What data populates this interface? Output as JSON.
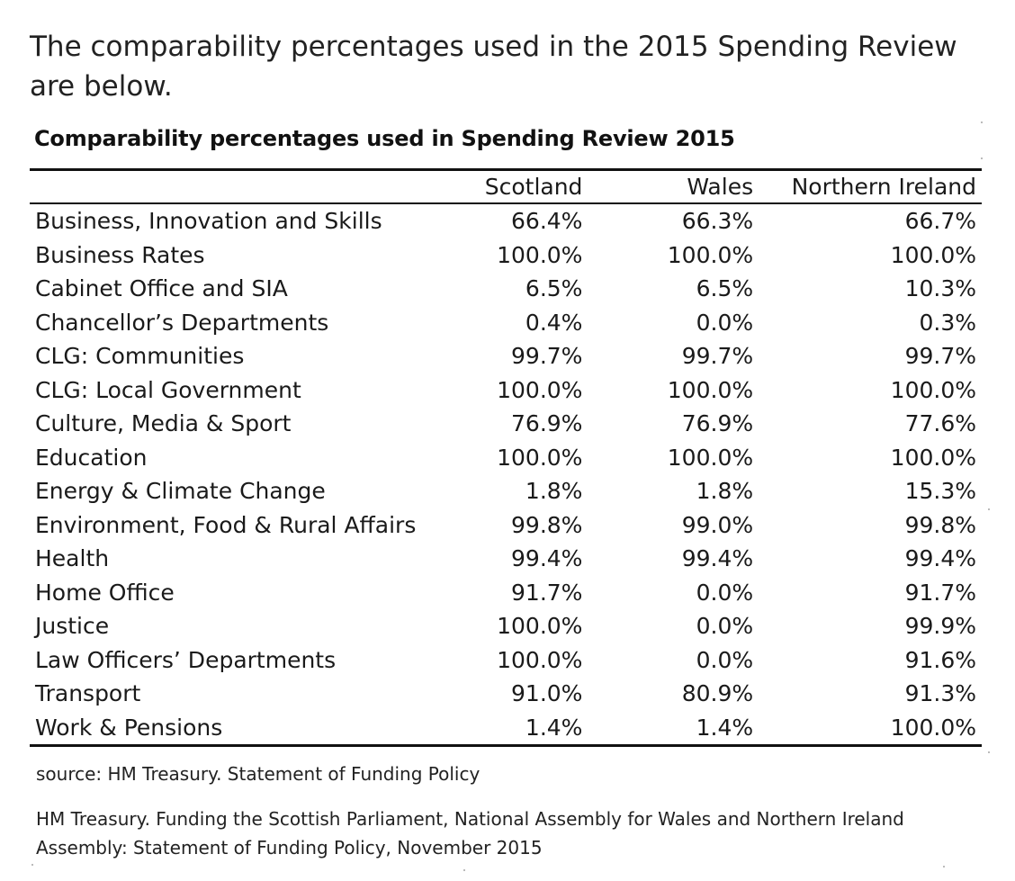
{
  "intro": {
    "text": "The comparability percentages used in the 2015 Spending Review are below."
  },
  "table": {
    "title": "Comparability percentages used in Spending Review 2015",
    "columns": [
      "",
      "Scotland",
      "Wales",
      "Northern Ireland"
    ],
    "rows": [
      {
        "department": "Business, Innovation and Skills",
        "scotland": "66.4%",
        "wales": "66.3%",
        "northern_ireland": "66.7%"
      },
      {
        "department": "Business Rates",
        "scotland": "100.0%",
        "wales": "100.0%",
        "northern_ireland": "100.0%"
      },
      {
        "department": "Cabinet Office and SIA",
        "scotland": "6.5%",
        "wales": "6.5%",
        "northern_ireland": "10.3%"
      },
      {
        "department": "Chancellor’s  Departments",
        "scotland": "0.4%",
        "wales": "0.0%",
        "northern_ireland": "0.3%"
      },
      {
        "department": "CLG: Communities",
        "scotland": "99.7%",
        "wales": "99.7%",
        "northern_ireland": "99.7%"
      },
      {
        "department": "CLG: Local Government",
        "scotland": "100.0%",
        "wales": "100.0%",
        "northern_ireland": "100.0%"
      },
      {
        "department": "Culture, Media & Sport",
        "scotland": "76.9%",
        "wales": "76.9%",
        "northern_ireland": "77.6%"
      },
      {
        "department": "Education",
        "scotland": "100.0%",
        "wales": "100.0%",
        "northern_ireland": "100.0%"
      },
      {
        "department": "Energy & Climate Change",
        "scotland": "1.8%",
        "wales": "1.8%",
        "northern_ireland": "15.3%"
      },
      {
        "department": "Environment, Food & Rural Affairs",
        "scotland": "99.8%",
        "wales": "99.0%",
        "northern_ireland": "99.8%"
      },
      {
        "department": "Health",
        "scotland": "99.4%",
        "wales": "99.4%",
        "northern_ireland": "99.4%"
      },
      {
        "department": "Home Office",
        "scotland": "91.7%",
        "wales": "0.0%",
        "northern_ireland": "91.7%"
      },
      {
        "department": "Justice",
        "scotland": "100.0%",
        "wales": "0.0%",
        "northern_ireland": "99.9%"
      },
      {
        "department": "Law Officers’ Departments",
        "scotland": "100.0%",
        "wales": "0.0%",
        "northern_ireland": "91.6%"
      },
      {
        "department": "Transport",
        "scotland": "91.0%",
        "wales": "80.9%",
        "northern_ireland": "91.3%"
      },
      {
        "department": "Work & Pensions",
        "scotland": "1.4%",
        "wales": "1.4%",
        "northern_ireland": "100.0%"
      }
    ]
  },
  "footer": {
    "source": "source: HM Treasury. Statement of Funding Policy",
    "note": "HM Treasury. Funding the Scottish Parliament, National Assembly for Wales and Northern Ireland Assembly: Statement of Funding Policy, November 2015"
  }
}
